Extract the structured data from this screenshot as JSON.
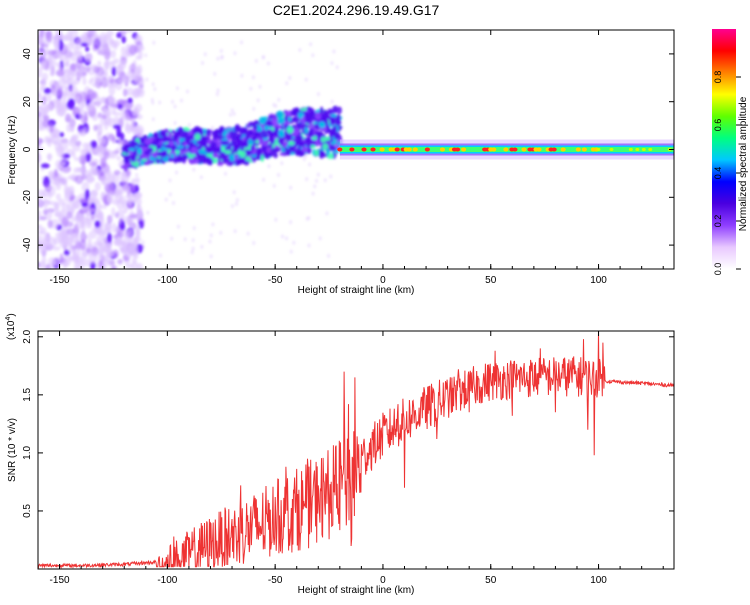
{
  "page_title": "C2E1.2024.296.19.49.G17",
  "chart_data": [
    {
      "type": "heatmap",
      "title": "C2E1.2024.296.19.49.G17",
      "xlabel": "Height of straight line (km)",
      "ylabel": "Frequency (Hz)",
      "xlim": [
        -160,
        135
      ],
      "ylim": [
        -50,
        50
      ],
      "xticks": [
        -150,
        -100,
        -50,
        0,
        50,
        100
      ],
      "yticks": [
        -40,
        -20,
        0,
        20,
        40
      ],
      "colorbar": {
        "label": "Normalized spectral amplitude",
        "range": [
          0.0,
          1.0
        ],
        "ticks": [
          "0.0",
          "0.2",
          "0.4",
          "0.6",
          "0.8"
        ],
        "colors": [
          "#ffffff",
          "#e8c8ff",
          "#8f3fff",
          "#4a00e0",
          "#0000ff",
          "#00c8ff",
          "#00ff80",
          "#60ff00",
          "#ffff00",
          "#ff8000",
          "#ff0000",
          "#ff0090"
        ]
      },
      "features": {
        "noise_region_x": [
          -160,
          -120
        ],
        "spread_band": {
          "x": [
            -120,
            -20
          ],
          "f_center_start": -2,
          "f_center_end": 8,
          "f_width_start": 5,
          "f_width_end": 10
        },
        "narrow_line": {
          "x": [
            -20,
            135
          ],
          "f_center": 0,
          "f_width": 2
        }
      }
    },
    {
      "type": "line",
      "xlabel": "Height of straight line (km)",
      "ylabel": "SNR (10 * v/v)",
      "y_multiplier": "(x10",
      "y_exponent": "4",
      "y_multiplier_close": ")",
      "xlim": [
        -160,
        135
      ],
      "ylim": [
        0.0,
        2.05
      ],
      "xticks": [
        -150,
        -100,
        -50,
        0,
        50,
        100
      ],
      "yticks": [
        "0.5",
        "1.0",
        "1.5",
        "2.0"
      ],
      "series": [
        {
          "color": "#ee3333",
          "envelope_x": [
            -160,
            -140,
            -120,
            -105,
            -100,
            -90,
            -80,
            -70,
            -60,
            -50,
            -40,
            -30,
            -25,
            -18,
            -15,
            -12,
            -10,
            -5,
            0,
            10,
            20,
            30,
            40,
            50,
            60,
            70,
            80,
            90,
            95,
            100,
            102,
            103,
            110,
            120,
            135
          ],
          "envelope_y": [
            0.03,
            0.03,
            0.04,
            0.06,
            0.08,
            0.15,
            0.22,
            0.26,
            0.3,
            0.35,
            0.4,
            0.45,
            0.5,
            0.55,
            0.6,
            0.85,
            0.95,
            1.05,
            1.15,
            1.28,
            1.38,
            1.47,
            1.56,
            1.62,
            1.64,
            1.65,
            1.66,
            1.66,
            1.65,
            1.64,
            1.63,
            1.62,
            1.61,
            1.6,
            1.58
          ],
          "spikes": [
            {
              "x": -97,
              "y": 0.28
            },
            {
              "x": -85,
              "y": 0.35
            },
            {
              "x": -73,
              "y": 0.5
            },
            {
              "x": -66,
              "y": 0.72
            },
            {
              "x": -60,
              "y": 0.58
            },
            {
              "x": -50,
              "y": 0.62
            },
            {
              "x": -45,
              "y": 0.88
            },
            {
              "x": -35,
              "y": 0.95
            },
            {
              "x": -30,
              "y": 0.72
            },
            {
              "x": -22,
              "y": 1.05
            },
            {
              "x": -18,
              "y": 1.7
            },
            {
              "x": -16,
              "y": 1.42
            },
            {
              "x": -13,
              "y": 1.65
            },
            {
              "x": -5,
              "y": 1.18
            },
            {
              "x": 7,
              "y": 1.42
            },
            {
              "x": 10,
              "y": 0.7
            },
            {
              "x": 18,
              "y": 1.48
            },
            {
              "x": 25,
              "y": 1.12
            },
            {
              "x": 35,
              "y": 1.72
            },
            {
              "x": 40,
              "y": 1.35
            },
            {
              "x": 52,
              "y": 1.88
            },
            {
              "x": 60,
              "y": 1.32
            },
            {
              "x": 73,
              "y": 1.9
            },
            {
              "x": 80,
              "y": 1.35
            },
            {
              "x": 88,
              "y": 1.82
            },
            {
              "x": 93,
              "y": 1.98
            },
            {
              "x": 95,
              "y": 1.2
            },
            {
              "x": 98,
              "y": 0.98
            },
            {
              "x": 100,
              "y": 2.05
            },
            {
              "x": 102,
              "y": 1.95
            }
          ]
        }
      ]
    }
  ]
}
